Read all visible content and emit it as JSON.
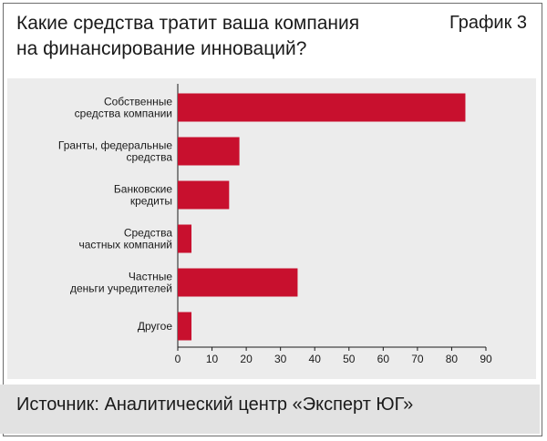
{
  "header": {
    "title_line1": "Какие средства тратит ваша компания",
    "title_line2": "на финансирование инноваций?",
    "chart_label": "График 3"
  },
  "footer": {
    "source": "Источник: Аналитический центр «Эксперт ЮГ»"
  },
  "colors": {
    "bar": "#c8102e",
    "plot_bg": "#ececec",
    "axis": "#1a1a1a"
  },
  "chart_data": {
    "type": "bar",
    "orientation": "horizontal",
    "categories": [
      [
        "Собственные",
        "средства компании"
      ],
      [
        "Гранты, федеральные",
        "средства"
      ],
      [
        "Банковские",
        "кредиты"
      ],
      [
        "Средства",
        "частных компаний"
      ],
      [
        "Частные",
        "деньги учредителей"
      ],
      [
        "Другое"
      ]
    ],
    "values": [
      84,
      18,
      15,
      4,
      35,
      4
    ],
    "xlim": [
      0,
      90
    ],
    "xticks": [
      0,
      10,
      20,
      30,
      40,
      50,
      60,
      70,
      80,
      90
    ],
    "grid": false
  }
}
